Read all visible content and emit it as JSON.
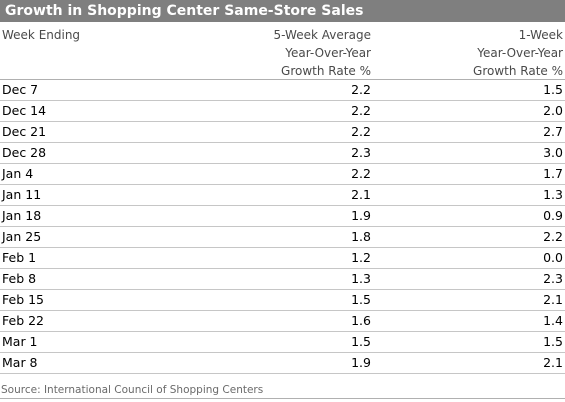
{
  "title": "Growth in Shopping Center Same-Store Sales",
  "source": "Source: International Council of Shopping Centers",
  "colors": {
    "title_bg": "#7f7f7f",
    "title_text": "#ffffff",
    "header_text": "#4a4a4a",
    "row_rule": "#c6c6c6"
  },
  "chart_data": {
    "type": "table",
    "title": "Growth in Shopping Center Same-Store Sales",
    "columns": [
      {
        "lines": [
          "Week Ending"
        ]
      },
      {
        "lines": [
          "5-Week Average",
          "Year-Over-Year",
          "Growth Rate %"
        ]
      },
      {
        "lines": [
          "1-Week",
          "Year-Over-Year",
          "Growth Rate %"
        ]
      }
    ],
    "rows": [
      [
        "Dec 7",
        "2.2",
        "1.5"
      ],
      [
        "Dec 14",
        "2.2",
        "2.0"
      ],
      [
        "Dec 21",
        "2.2",
        "2.7"
      ],
      [
        "Dec 28",
        "2.3",
        "3.0"
      ],
      [
        "Jan 4",
        "2.2",
        "1.7"
      ],
      [
        "Jan 11",
        "2.1",
        "1.3"
      ],
      [
        "Jan 18",
        "1.9",
        "0.9"
      ],
      [
        "Jan 25",
        "1.8",
        "2.2"
      ],
      [
        "Feb 1",
        "1.2",
        "0.0"
      ],
      [
        "Feb 8",
        "1.3",
        "2.3"
      ],
      [
        "Feb 15",
        "1.5",
        "2.1"
      ],
      [
        "Feb 22",
        "1.6",
        "1.4"
      ],
      [
        "Mar 1",
        "1.5",
        "1.5"
      ],
      [
        "Mar 8",
        "1.9",
        "2.1"
      ]
    ],
    "source": "Source: International Council of Shopping Centers"
  }
}
